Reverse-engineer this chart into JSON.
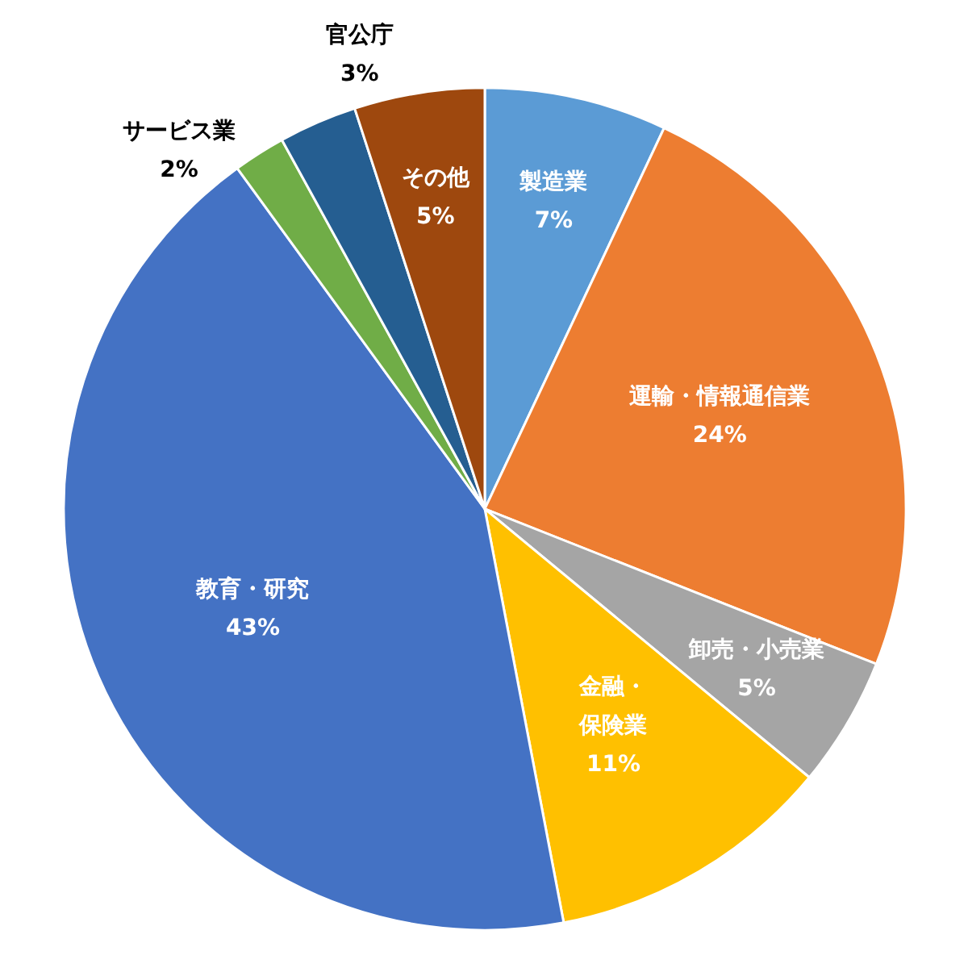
{
  "chart_data": {
    "type": "pie",
    "categories": [
      "製造業",
      "運輸・情報通信業",
      "卸売・小売業",
      "金融・保険業",
      "教育・研究",
      "サービス業",
      "官公庁",
      "その他"
    ],
    "values": [
      7,
      24,
      5,
      11,
      43,
      2,
      3,
      5
    ],
    "colors": [
      "#5b9bd5",
      "#ed7d31",
      "#a5a5a5",
      "#ffc000",
      "#4472c4",
      "#70ad47",
      "#255e91",
      "#9e480e"
    ],
    "value_labels": [
      "7%",
      "24%",
      "5%",
      "11%",
      "43%",
      "2%",
      "3%",
      "5%"
    ]
  }
}
